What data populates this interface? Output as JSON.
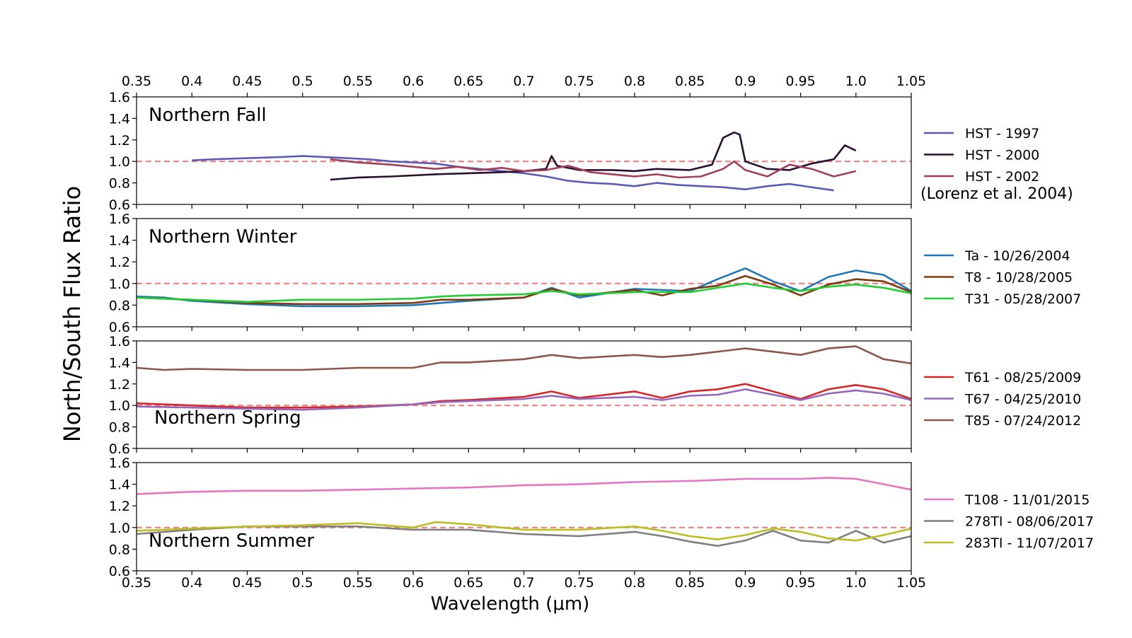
{
  "figure": {
    "ylabel": "North/South Flux Ratio",
    "xlabel": "Wavelength (μm)",
    "xlim": [
      0.35,
      1.05
    ],
    "xticks": [
      "0.35",
      "0.4",
      "0.45",
      "0.5",
      "0.55",
      "0.6",
      "0.65",
      "0.7",
      "0.75",
      "0.8",
      "0.85",
      "0.9",
      "0.95",
      "1.0",
      "1.05"
    ],
    "ylim": [
      0.6,
      1.6
    ],
    "yticks": [
      "0.6",
      "0.8",
      "1.0",
      "1.2",
      "1.4",
      "1.6"
    ],
    "reference_line": {
      "y": 1.0,
      "color": "#f08080",
      "style": "dashed"
    },
    "colors": {
      "axes": "#000000",
      "background": "#ffffff"
    }
  },
  "chart_data": [
    {
      "type": "line",
      "title": "Northern Fall",
      "legend_note": "(Lorenz et al. 2004)",
      "series": [
        {
          "name": "HST - 1997",
          "color": "#5b5bb5",
          "x": [
            0.4,
            0.42,
            0.45,
            0.48,
            0.5,
            0.52,
            0.54,
            0.56,
            0.58,
            0.6,
            0.62,
            0.64,
            0.66,
            0.68,
            0.7,
            0.72,
            0.74,
            0.76,
            0.78,
            0.8,
            0.82,
            0.84,
            0.86,
            0.88,
            0.9,
            0.92,
            0.94,
            0.96,
            0.98
          ],
          "y": [
            1.01,
            1.02,
            1.03,
            1.04,
            1.05,
            1.04,
            1.03,
            1.02,
            1.0,
            0.99,
            0.98,
            0.95,
            0.93,
            0.91,
            0.89,
            0.86,
            0.82,
            0.8,
            0.79,
            0.77,
            0.8,
            0.78,
            0.77,
            0.76,
            0.74,
            0.77,
            0.79,
            0.76,
            0.73
          ]
        },
        {
          "name": "HST - 2000",
          "color": "#2a1030",
          "x": [
            0.525,
            0.55,
            0.58,
            0.6,
            0.62,
            0.65,
            0.68,
            0.7,
            0.72,
            0.725,
            0.73,
            0.75,
            0.78,
            0.8,
            0.82,
            0.85,
            0.87,
            0.88,
            0.89,
            0.895,
            0.9,
            0.92,
            0.94,
            0.96,
            0.98,
            0.99,
            1.0
          ],
          "y": [
            0.83,
            0.85,
            0.86,
            0.87,
            0.88,
            0.89,
            0.9,
            0.91,
            0.93,
            1.05,
            0.96,
            0.92,
            0.92,
            0.91,
            0.93,
            0.92,
            0.97,
            1.22,
            1.27,
            1.25,
            1.0,
            0.93,
            0.92,
            0.98,
            1.02,
            1.15,
            1.1
          ]
        },
        {
          "name": "HST - 2002",
          "color": "#a0405a",
          "x": [
            0.525,
            0.55,
            0.58,
            0.6,
            0.62,
            0.64,
            0.66,
            0.68,
            0.7,
            0.72,
            0.74,
            0.76,
            0.78,
            0.8,
            0.82,
            0.84,
            0.86,
            0.88,
            0.89,
            0.9,
            0.92,
            0.94,
            0.96,
            0.98,
            1.0
          ],
          "y": [
            1.02,
            0.99,
            0.97,
            0.95,
            0.93,
            0.95,
            0.92,
            0.94,
            0.91,
            0.92,
            0.96,
            0.9,
            0.88,
            0.86,
            0.88,
            0.85,
            0.86,
            0.93,
            1.0,
            0.92,
            0.86,
            0.97,
            0.93,
            0.86,
            0.91
          ]
        }
      ]
    },
    {
      "type": "line",
      "title": "Northern Winter",
      "series": [
        {
          "name": "Ta - 10/26/2004",
          "color": "#1f77b4",
          "x": [
            0.35,
            0.375,
            0.4,
            0.45,
            0.5,
            0.55,
            0.6,
            0.625,
            0.65,
            0.7,
            0.725,
            0.75,
            0.8,
            0.85,
            0.875,
            0.9,
            0.925,
            0.95,
            0.975,
            1.0,
            1.025,
            1.05
          ],
          "y": [
            0.88,
            0.87,
            0.84,
            0.81,
            0.79,
            0.79,
            0.8,
            0.82,
            0.84,
            0.87,
            0.96,
            0.87,
            0.95,
            0.93,
            1.04,
            1.14,
            1.02,
            0.93,
            1.06,
            1.12,
            1.08,
            0.93
          ]
        },
        {
          "name": "T8 - 10/28/2005",
          "color": "#7b3a10",
          "x": [
            0.35,
            0.4,
            0.45,
            0.5,
            0.55,
            0.6,
            0.625,
            0.65,
            0.7,
            0.725,
            0.75,
            0.8,
            0.825,
            0.85,
            0.875,
            0.9,
            0.925,
            0.95,
            0.975,
            1.0,
            1.025,
            1.05
          ],
          "y": [
            0.87,
            0.85,
            0.82,
            0.81,
            0.81,
            0.82,
            0.85,
            0.85,
            0.87,
            0.95,
            0.89,
            0.94,
            0.89,
            0.95,
            0.98,
            1.07,
            0.99,
            0.89,
            0.99,
            1.04,
            1.02,
            0.92
          ]
        },
        {
          "name": "T31 - 05/28/2007",
          "color": "#22cc33",
          "x": [
            0.35,
            0.4,
            0.45,
            0.5,
            0.55,
            0.6,
            0.625,
            0.65,
            0.7,
            0.725,
            0.75,
            0.8,
            0.85,
            0.875,
            0.9,
            0.925,
            0.95,
            0.975,
            1.0,
            1.025,
            1.05
          ],
          "y": [
            0.87,
            0.85,
            0.83,
            0.85,
            0.85,
            0.86,
            0.88,
            0.89,
            0.9,
            0.93,
            0.9,
            0.92,
            0.92,
            0.96,
            1.0,
            0.96,
            0.93,
            0.97,
            0.99,
            0.96,
            0.91
          ]
        }
      ]
    },
    {
      "type": "line",
      "title": "Northern Spring",
      "series": [
        {
          "name": "T61 - 08/25/2009",
          "color": "#d62728",
          "x": [
            0.35,
            0.4,
            0.45,
            0.5,
            0.55,
            0.6,
            0.625,
            0.65,
            0.7,
            0.725,
            0.75,
            0.8,
            0.825,
            0.85,
            0.875,
            0.9,
            0.925,
            0.95,
            0.975,
            1.0,
            1.025,
            1.05
          ],
          "y": [
            1.02,
            1.0,
            0.98,
            0.98,
            0.99,
            1.01,
            1.04,
            1.05,
            1.08,
            1.13,
            1.07,
            1.13,
            1.07,
            1.13,
            1.15,
            1.2,
            1.13,
            1.06,
            1.15,
            1.19,
            1.15,
            1.06
          ]
        },
        {
          "name": "T67 - 04/25/2010",
          "color": "#9467bd",
          "x": [
            0.35,
            0.4,
            0.45,
            0.5,
            0.55,
            0.6,
            0.625,
            0.65,
            0.7,
            0.725,
            0.75,
            0.8,
            0.825,
            0.85,
            0.875,
            0.9,
            0.925,
            0.95,
            0.975,
            1.0,
            1.025,
            1.05
          ],
          "y": [
            0.99,
            0.98,
            0.97,
            0.96,
            0.98,
            1.01,
            1.03,
            1.04,
            1.06,
            1.09,
            1.06,
            1.08,
            1.05,
            1.09,
            1.1,
            1.15,
            1.1,
            1.05,
            1.11,
            1.14,
            1.11,
            1.05
          ]
        },
        {
          "name": "T85 - 07/24/2012",
          "color": "#8c564b",
          "x": [
            0.35,
            0.375,
            0.4,
            0.45,
            0.5,
            0.55,
            0.6,
            0.625,
            0.65,
            0.7,
            0.725,
            0.75,
            0.8,
            0.825,
            0.85,
            0.875,
            0.9,
            0.925,
            0.95,
            0.975,
            1.0,
            1.025,
            1.05
          ],
          "y": [
            1.35,
            1.33,
            1.34,
            1.33,
            1.33,
            1.35,
            1.35,
            1.4,
            1.4,
            1.43,
            1.47,
            1.44,
            1.47,
            1.45,
            1.47,
            1.5,
            1.53,
            1.5,
            1.47,
            1.53,
            1.55,
            1.43,
            1.39
          ]
        }
      ]
    },
    {
      "type": "line",
      "title": "Northern Summer",
      "series": [
        {
          "name": "T108 - 11/01/2015",
          "color": "#e377c2",
          "x": [
            0.35,
            0.4,
            0.45,
            0.5,
            0.55,
            0.6,
            0.65,
            0.7,
            0.75,
            0.8,
            0.85,
            0.9,
            0.95,
            0.975,
            1.0,
            1.025,
            1.05
          ],
          "y": [
            1.31,
            1.33,
            1.34,
            1.34,
            1.35,
            1.36,
            1.37,
            1.39,
            1.4,
            1.42,
            1.43,
            1.45,
            1.45,
            1.46,
            1.45,
            1.4,
            1.35
          ]
        },
        {
          "name": "278TI - 08/06/2017",
          "color": "#7f7f7f",
          "x": [
            0.35,
            0.4,
            0.45,
            0.5,
            0.55,
            0.6,
            0.65,
            0.7,
            0.75,
            0.8,
            0.825,
            0.85,
            0.875,
            0.9,
            0.925,
            0.95,
            0.975,
            1.0,
            1.025,
            1.05
          ],
          "y": [
            0.94,
            0.98,
            1.01,
            1.01,
            1.01,
            0.98,
            0.98,
            0.94,
            0.92,
            0.96,
            0.92,
            0.87,
            0.83,
            0.88,
            0.97,
            0.88,
            0.86,
            0.97,
            0.86,
            0.92
          ]
        },
        {
          "name": "283TI - 11/07/2017",
          "color": "#bcbd22",
          "x": [
            0.35,
            0.4,
            0.45,
            0.5,
            0.55,
            0.6,
            0.62,
            0.65,
            0.7,
            0.75,
            0.8,
            0.825,
            0.85,
            0.875,
            0.9,
            0.925,
            0.95,
            0.975,
            1.0,
            1.025,
            1.05
          ],
          "y": [
            0.97,
            0.99,
            1.01,
            1.02,
            1.04,
            1.0,
            1.05,
            1.03,
            0.98,
            0.98,
            1.01,
            0.97,
            0.92,
            0.89,
            0.93,
            0.99,
            0.96,
            0.9,
            0.88,
            0.93,
            0.99
          ]
        }
      ]
    }
  ]
}
